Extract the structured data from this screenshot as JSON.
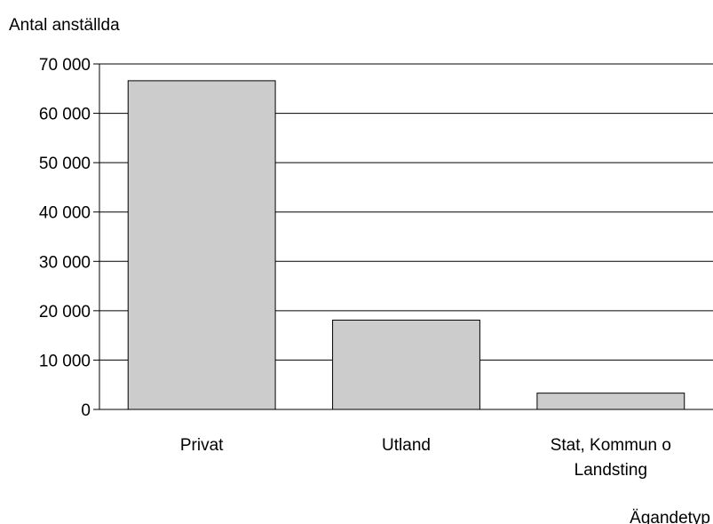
{
  "chart_data": {
    "type": "bar",
    "title": "",
    "ylabel": "Antal anställda",
    "xlabel": "Ägandetyp",
    "categories": [
      "Privat",
      "Utland",
      "Stat, Kommun o Landsting"
    ],
    "category_lines": [
      [
        "Privat"
      ],
      [
        "Utland"
      ],
      [
        "Stat, Kommun o",
        "Landsting"
      ]
    ],
    "values": [
      66600,
      18100,
      3300
    ],
    "ylim": [
      0,
      70000
    ],
    "yticks": [
      0,
      10000,
      20000,
      30000,
      40000,
      50000,
      60000,
      70000
    ],
    "ytick_labels": [
      "0",
      "10 000",
      "20 000",
      "30 000",
      "40 000",
      "50 000",
      "60 000",
      "70 000"
    ],
    "grid": true,
    "legend": "none",
    "colors": {
      "bar_fill": "#cccccc",
      "bar_stroke": "#000000",
      "grid": "#000000",
      "axis": "#000000"
    }
  }
}
